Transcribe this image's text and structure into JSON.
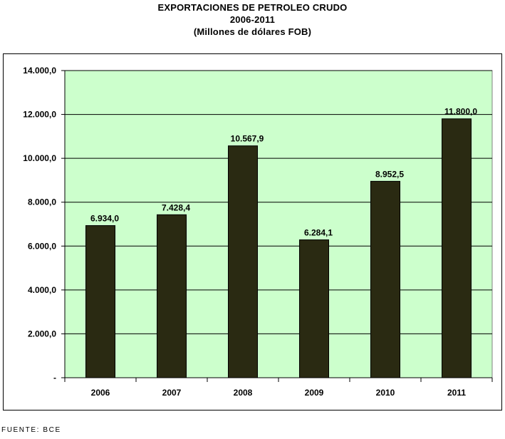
{
  "chart_data": {
    "type": "bar",
    "title": "EXPORTACIONES DE PETROLEO CRUDO",
    "subtitle": "2006-2011",
    "unit_label": "(Millones de dólares FOB)",
    "categories": [
      "2006",
      "2007",
      "2008",
      "2009",
      "2010",
      "2011"
    ],
    "values": [
      6934.0,
      7428.4,
      10567.9,
      6284.1,
      8952.5,
      11800.0
    ],
    "value_labels": [
      "6.934,0",
      "7.428,4",
      "10.567,9",
      "6.284,1",
      "8.952,5",
      "11.800,0"
    ],
    "ylim": [
      0,
      14000
    ],
    "yticks": [
      0,
      2000,
      4000,
      6000,
      8000,
      10000,
      12000,
      14000
    ],
    "ytick_labels": [
      "-",
      "2.000,0",
      "4.000,0",
      "6.000,0",
      "8.000,0",
      "10.000,0",
      "12.000,0",
      "14.000,0"
    ],
    "grid": true,
    "legend": "none",
    "colors": {
      "bar": "#2a2a12",
      "plot_background": "#ccffcc",
      "grid": "#000000"
    }
  },
  "source": "FUENTE: BCE"
}
